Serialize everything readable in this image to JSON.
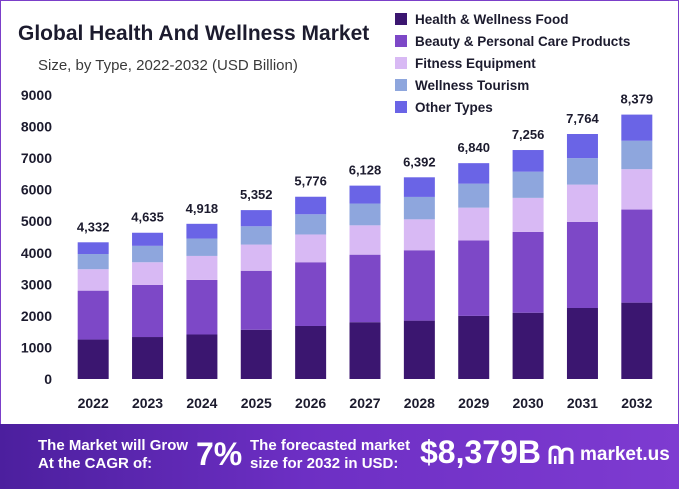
{
  "chart_data": {
    "type": "bar",
    "stacked": true,
    "title": "Global Health And Wellness Market",
    "subtitle": "Size, by Type, 2022-2032 (USD Billion)",
    "categories": [
      "2022",
      "2023",
      "2024",
      "2025",
      "2026",
      "2027",
      "2028",
      "2029",
      "2030",
      "2031",
      "2032"
    ],
    "totals": [
      4332,
      4635,
      4918,
      5352,
      5776,
      6128,
      6392,
      6840,
      7256,
      7764,
      8379
    ],
    "total_labels": [
      "4,332",
      "4,635",
      "4,918",
      "5,352",
      "5,776",
      "6,128",
      "6,392",
      "6,840",
      "7,256",
      "7,764",
      "8,379"
    ],
    "series": [
      {
        "name": "Health & Wellness Food",
        "color": "#3b1670",
        "values": [
          1250,
          1330,
          1410,
          1560,
          1680,
          1800,
          1850,
          2000,
          2100,
          2250,
          2420
        ]
      },
      {
        "name": "Beauty & Personal Care Products",
        "color": "#7d48c7",
        "values": [
          1550,
          1650,
          1730,
          1870,
          2020,
          2140,
          2230,
          2390,
          2560,
          2730,
          2950
        ]
      },
      {
        "name": "Fitness Equipment",
        "color": "#d8b9f4",
        "values": [
          680,
          720,
          760,
          830,
          880,
          930,
          980,
          1040,
          1080,
          1180,
          1280
        ]
      },
      {
        "name": "Wellness Tourism",
        "color": "#8ea6dd",
        "values": [
          480,
          520,
          550,
          580,
          640,
          690,
          710,
          760,
          830,
          840,
          900
        ]
      },
      {
        "name": "Other Types",
        "color": "#6a64e6",
        "values": [
          372,
          415,
          468,
          512,
          556,
          568,
          622,
          650,
          686,
          764,
          829
        ]
      }
    ],
    "yticks": [
      0,
      1000,
      2000,
      3000,
      4000,
      5000,
      6000,
      7000,
      8000,
      9000
    ],
    "ylim": [
      0,
      9000
    ],
    "legend_position": "top-right",
    "grid": false
  },
  "footer": {
    "cagr_label": "The Market will Grow At the CAGR of:",
    "cagr_value": "7%",
    "forecast_label": "The forecasted market size for 2032 in USD:",
    "forecast_value": "$8,379B",
    "brand_name": "market.us",
    "brand_icon": "market-us-logo-icon"
  }
}
